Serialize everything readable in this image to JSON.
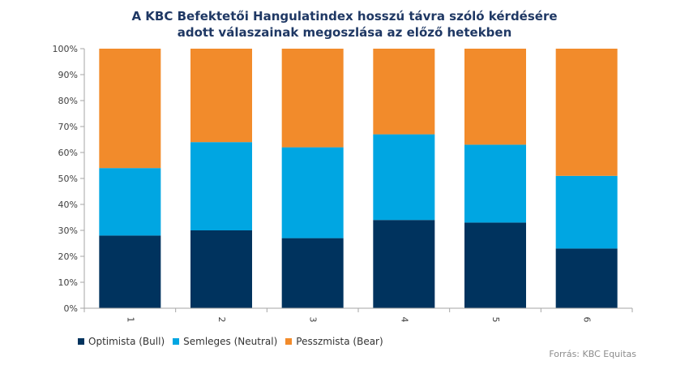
{
  "chart_data": {
    "type": "bar",
    "stacked": true,
    "normalized": true,
    "title": [
      "A KBC Befektetői Hangulatindex  hosszú távra szóló kérdésére",
      "adott válaszainak megoszlása az előző hetekben"
    ],
    "categories": [
      "1",
      "2",
      "3",
      "4",
      "5",
      "6"
    ],
    "series": [
      {
        "name": "Optimista (Bull)",
        "color": "#00335e",
        "values": [
          28,
          30,
          27,
          34,
          33,
          23
        ]
      },
      {
        "name": "Semleges (Neutral)",
        "color": "#00a6e2",
        "values": [
          26,
          34,
          35,
          33,
          30,
          28
        ]
      },
      {
        "name": "Pesszmista (Bear)",
        "color": "#f28b2b",
        "values": [
          46,
          36,
          38,
          33,
          37,
          49
        ]
      }
    ],
    "ylim": [
      0,
      100
    ],
    "yticks": [
      "0%",
      "10%",
      "20%",
      "30%",
      "40%",
      "50%",
      "60%",
      "70%",
      "80%",
      "90%",
      "100%"
    ],
    "xlabel": "",
    "ylabel": "",
    "grid": false,
    "legend": "bottom-left"
  },
  "source": "Forrás: KBC Equitas"
}
